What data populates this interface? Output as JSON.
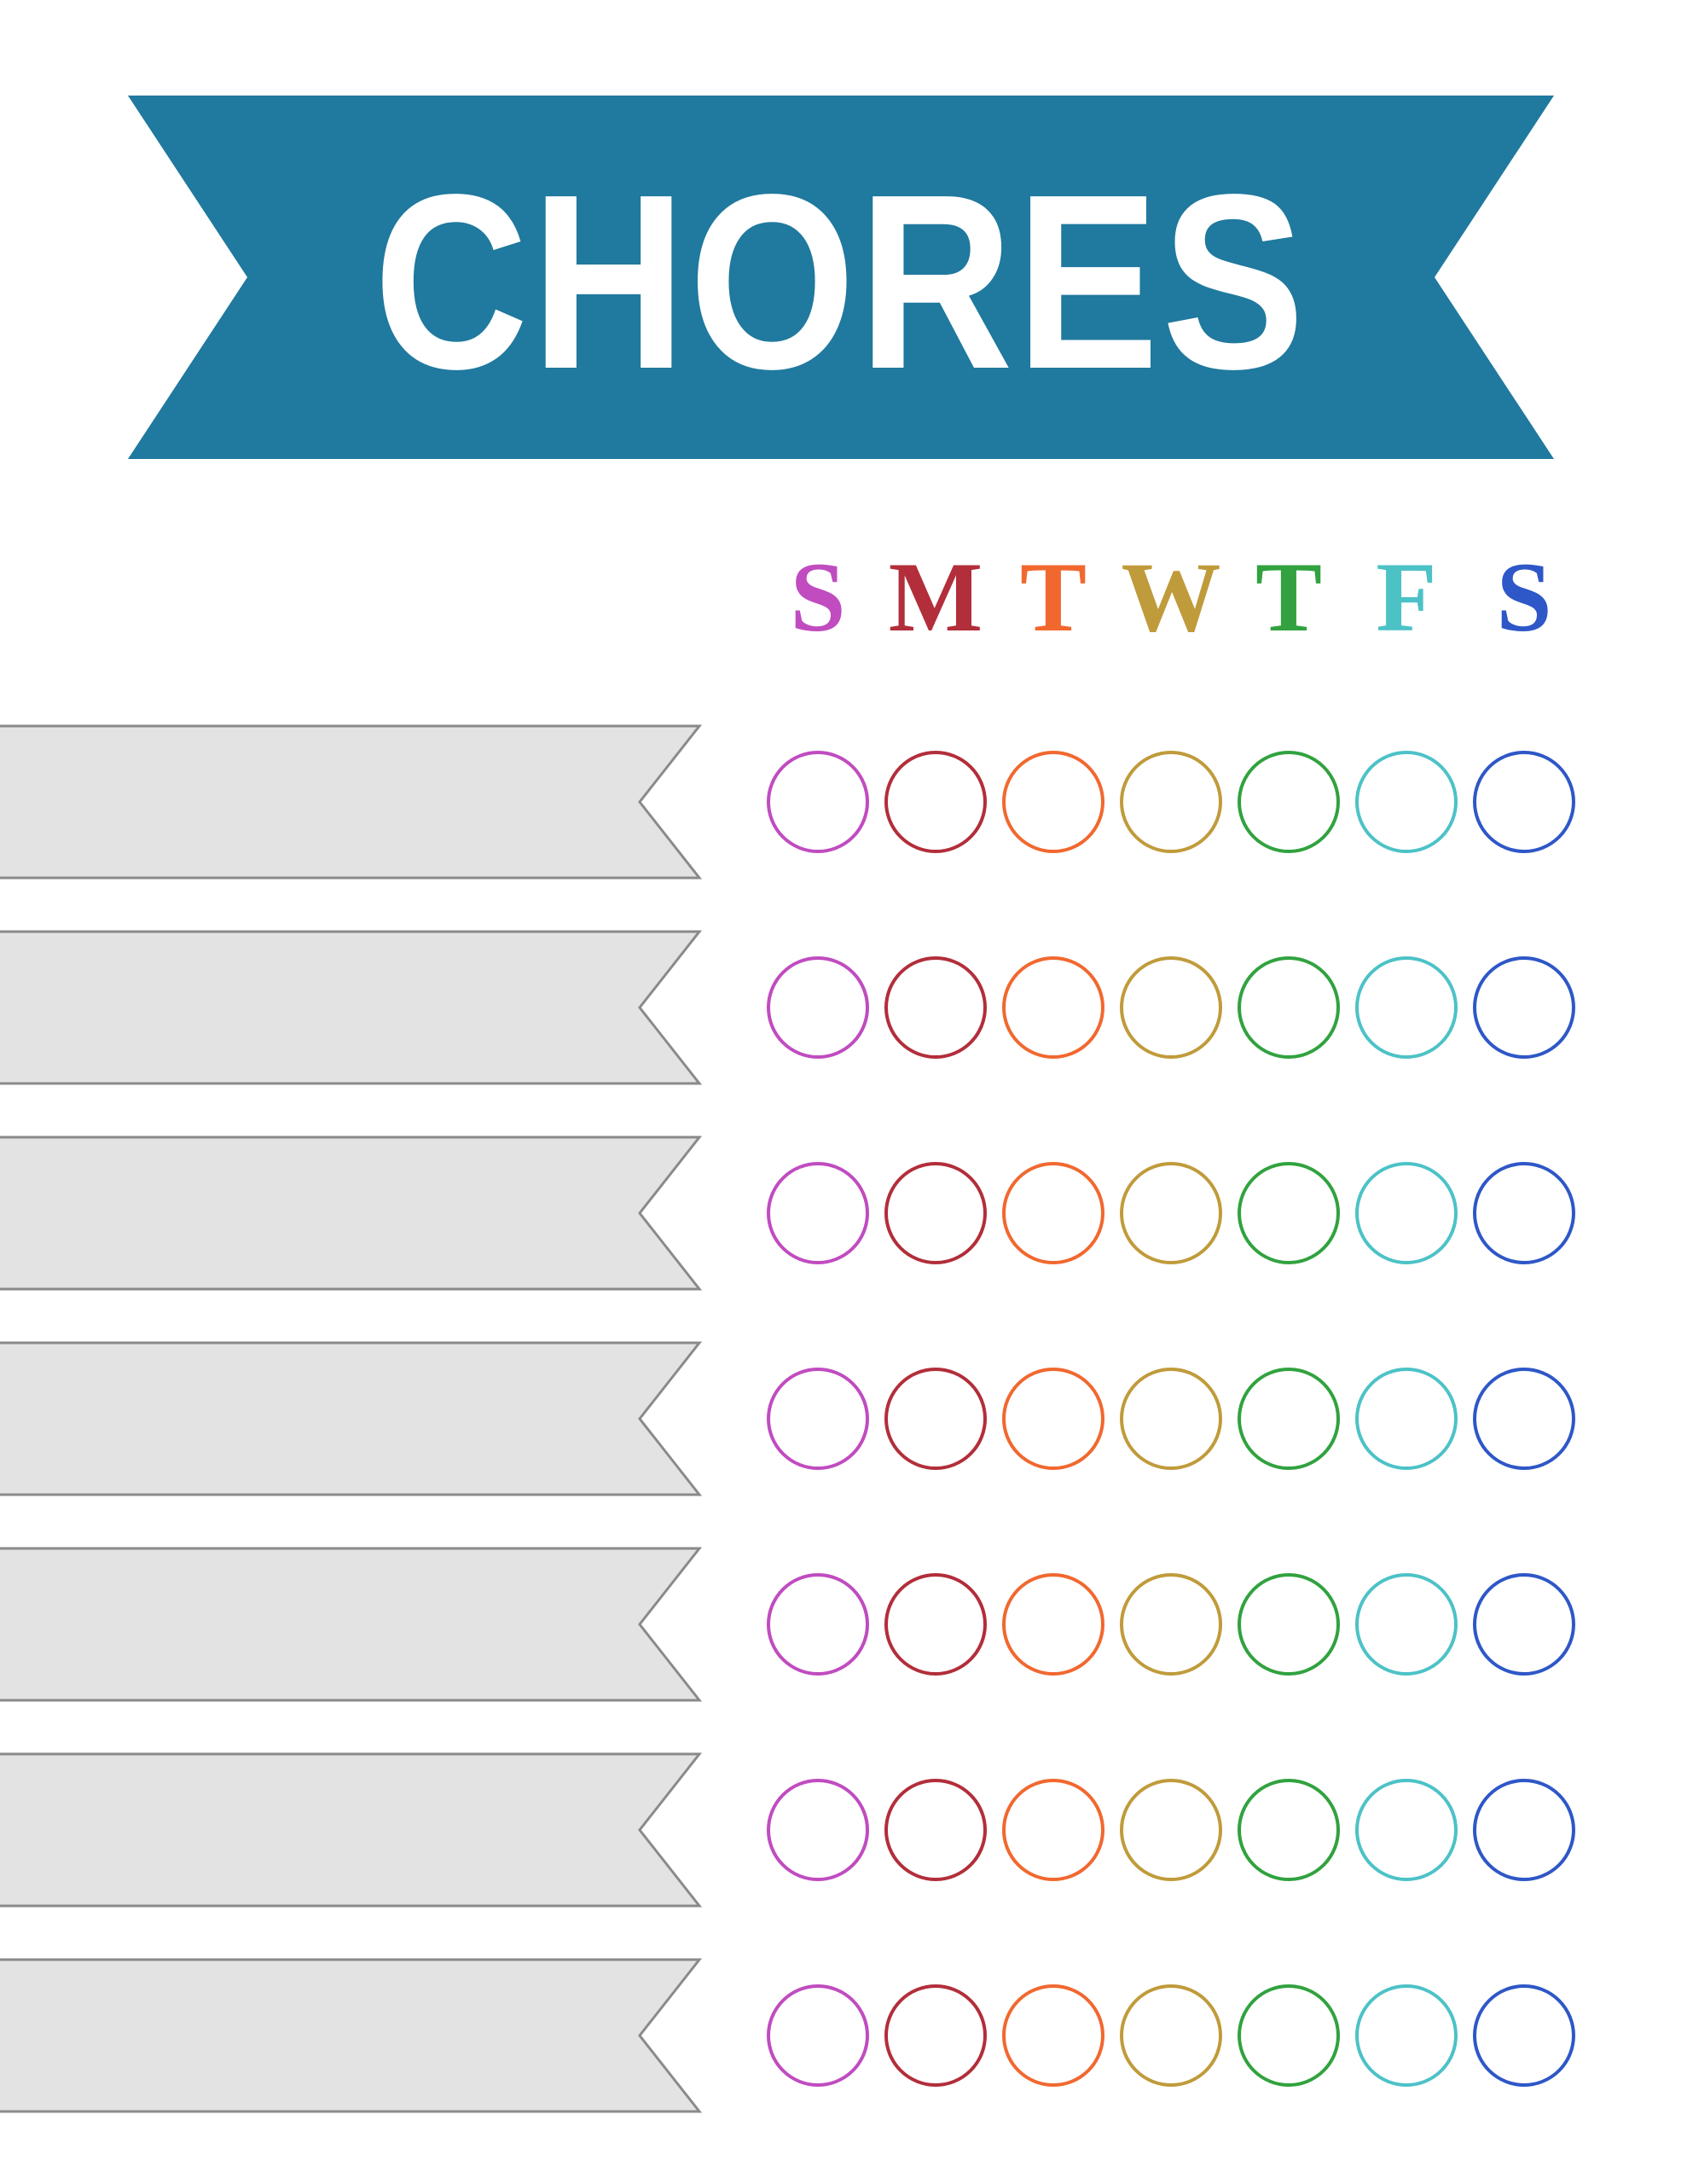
{
  "banner": {
    "title": "CHORES",
    "color": "#20799e",
    "text_color": "#ffffff"
  },
  "week": {
    "day_letters": [
      "S",
      "M",
      "T",
      "W",
      "T",
      "F",
      "S"
    ],
    "day_colors": [
      "#c04cc0",
      "#b22e3a",
      "#f1682f",
      "#c09b3b",
      "#31a23f",
      "#4cc2c7",
      "#2e57c7"
    ]
  },
  "chores": {
    "ribbon_fill": "#e3e3e3",
    "ribbon_border": "#8a8a8a",
    "rows": [
      {
        "label": ""
      },
      {
        "label": ""
      },
      {
        "label": ""
      },
      {
        "label": ""
      },
      {
        "label": ""
      },
      {
        "label": ""
      },
      {
        "label": ""
      }
    ]
  },
  "grid": {
    "rows": 7,
    "columns": 7,
    "checked_cells": []
  }
}
